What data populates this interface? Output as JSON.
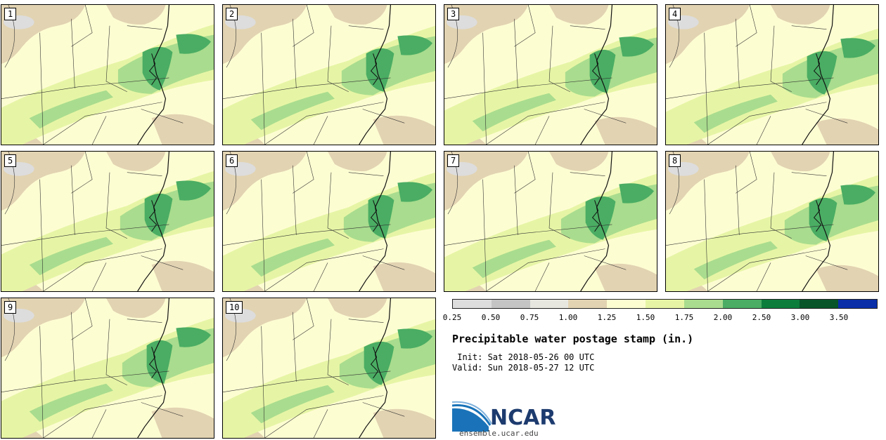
{
  "panels": [
    {
      "number": "1"
    },
    {
      "number": "2"
    },
    {
      "number": "3"
    },
    {
      "number": "4"
    },
    {
      "number": "5"
    },
    {
      "number": "6"
    },
    {
      "number": "7"
    },
    {
      "number": "8"
    },
    {
      "number": "9"
    },
    {
      "number": "10"
    }
  ],
  "legend": {
    "colors": [
      "#dddddd",
      "#c4c4c4",
      "#e7e7e0",
      "#e2d3b2",
      "#fdfdd2",
      "#e6f5a5",
      "#a9dc8e",
      "#4aad63",
      "#0d7d3c",
      "#08552a",
      "#0a2ea8"
    ],
    "ticks": [
      "0.25",
      "0.50",
      "0.75",
      "1.00",
      "1.25",
      "1.50",
      "1.75",
      "2.00",
      "2.50",
      "3.00",
      "3.50"
    ]
  },
  "title": "Precipitable water postage stamp (in.)",
  "init_line": " Init: Sat 2018-05-26 00 UTC",
  "valid_line": "Valid: Sun 2018-05-27 12 UTC",
  "logo": {
    "text": "NCAR",
    "brand_color": "#1d3b6e",
    "arc_color": "#1a73b8"
  },
  "website": "ensemble.ucar.edu",
  "colors": {
    "background_land": "#fdfdd2",
    "light_green": "#e6f5a5",
    "mid_green": "#a9dc8e",
    "green": "#4aad63",
    "tan": "#e2d3b2",
    "gray": "#dddddd"
  }
}
